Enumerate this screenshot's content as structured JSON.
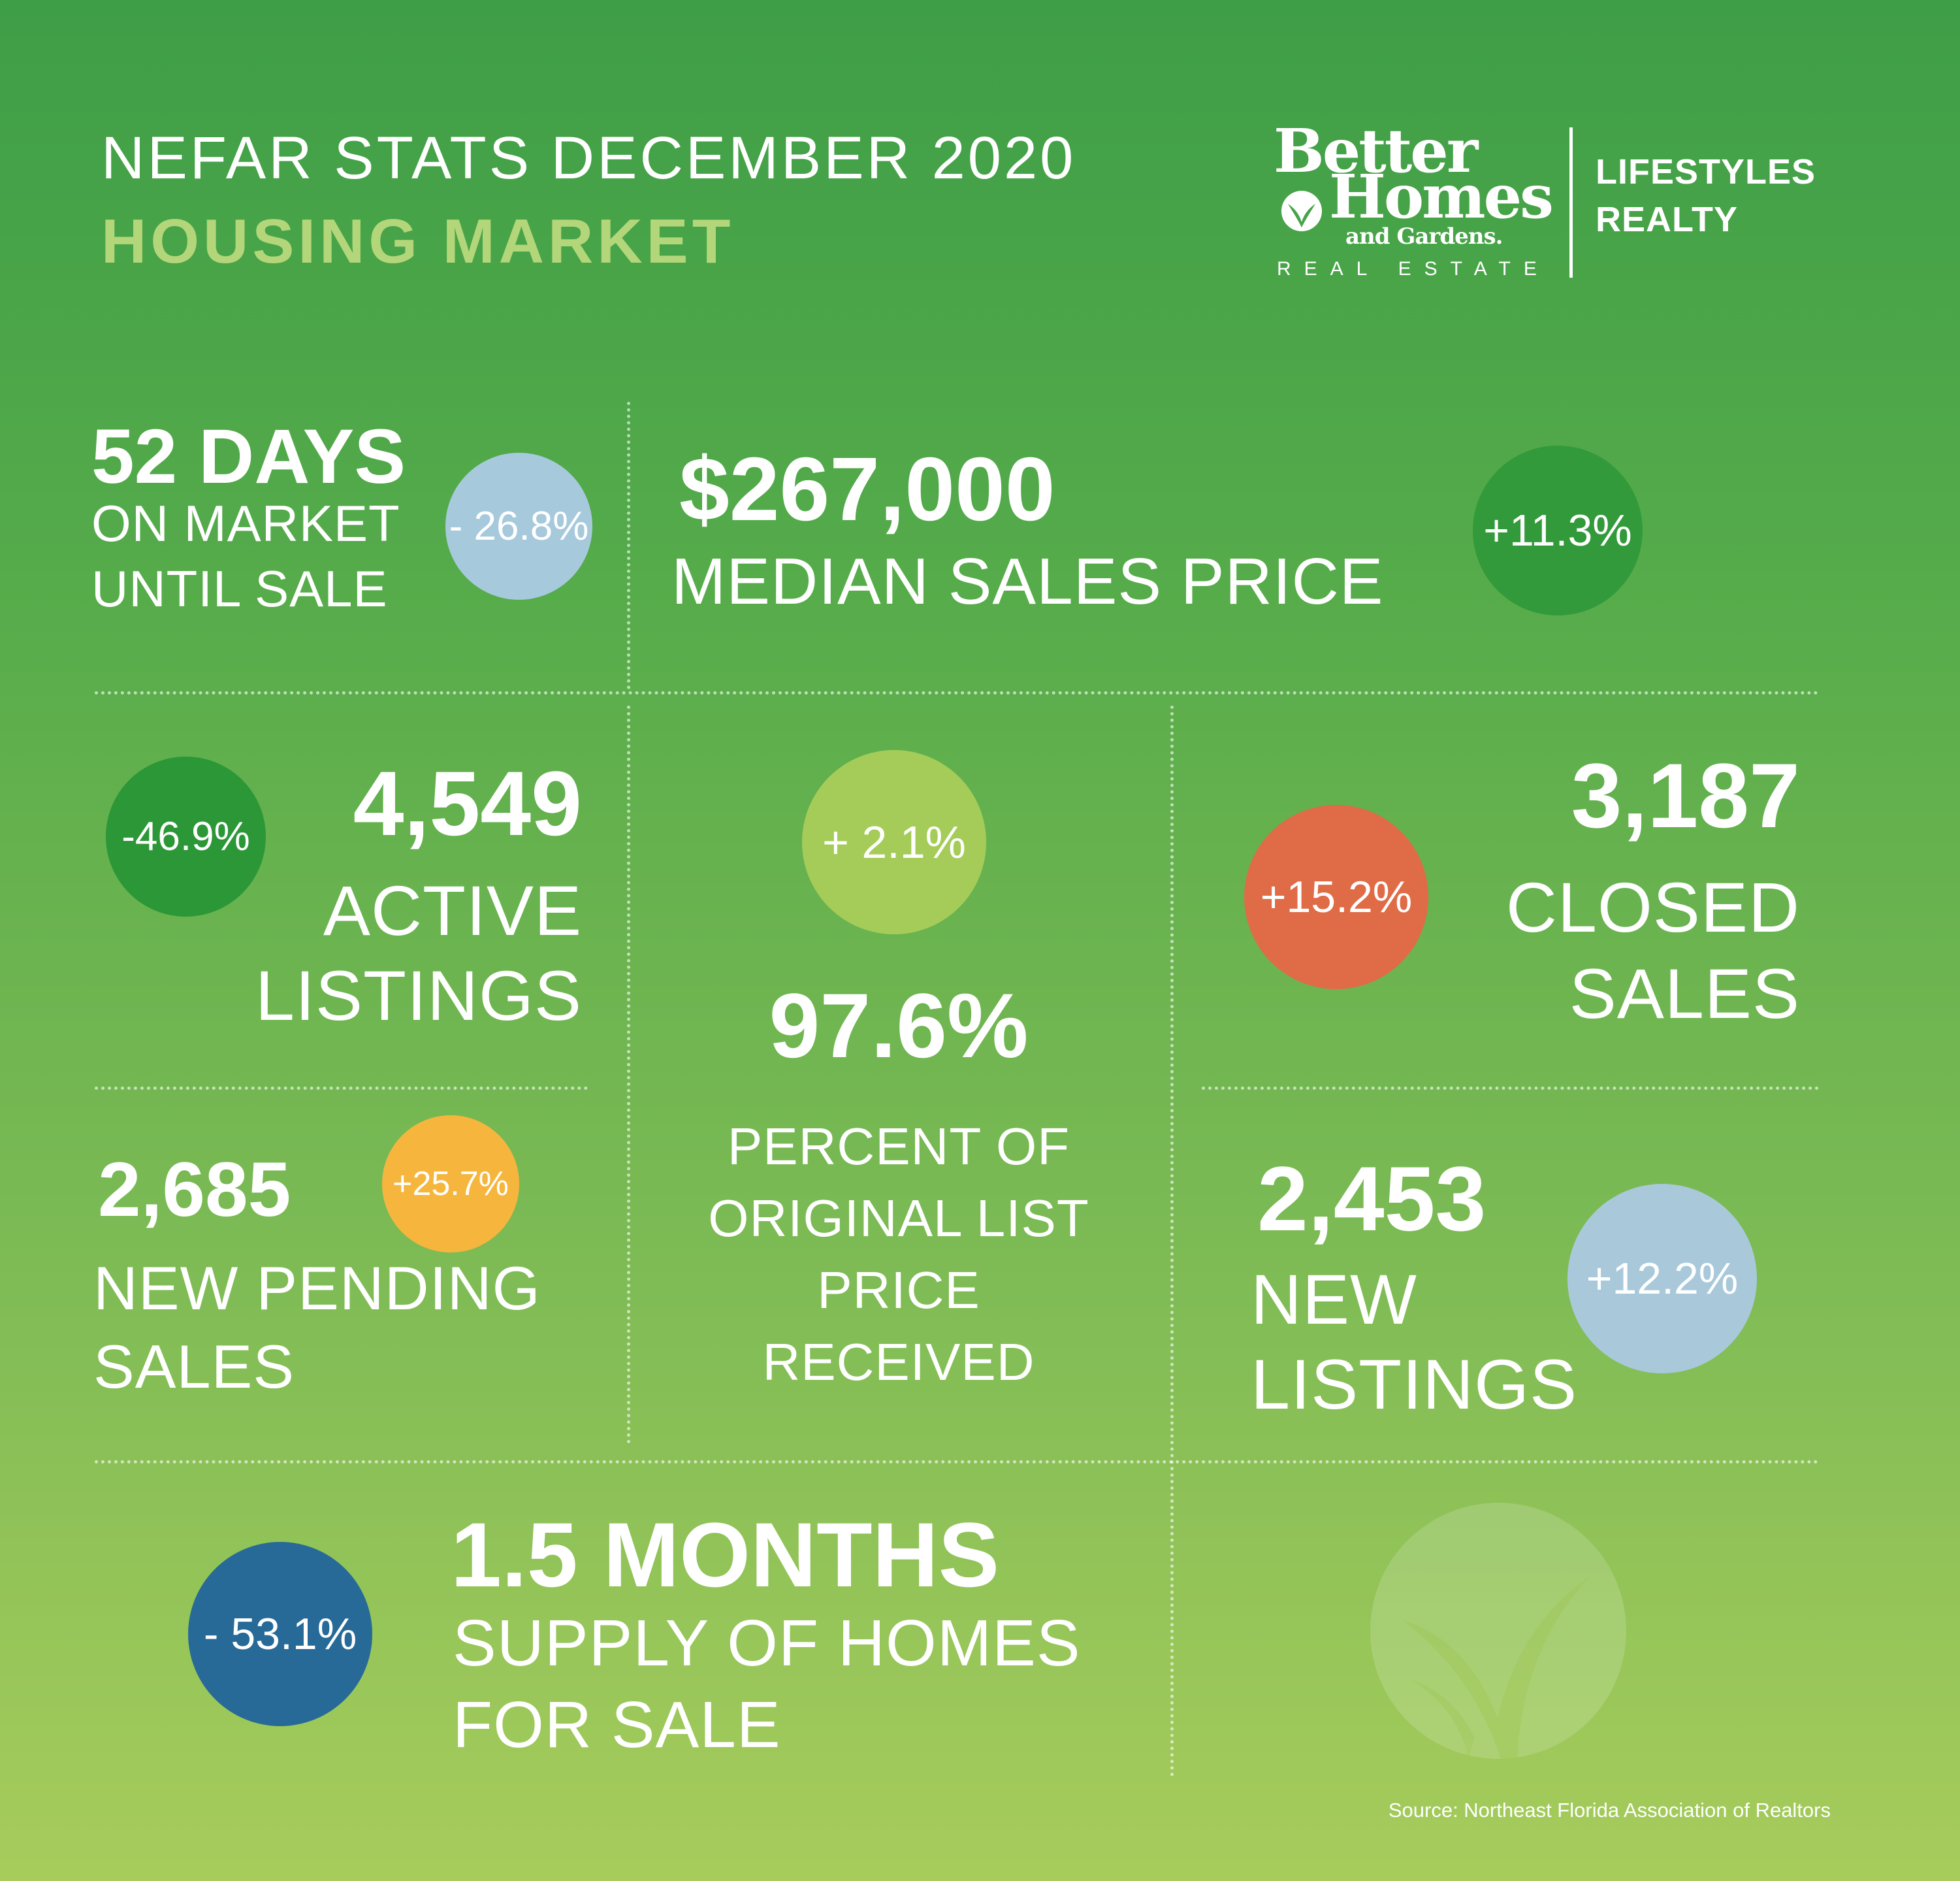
{
  "header": {
    "title": "NEFAR STATS  DECEMBER 2020",
    "subtitle": "HOUSING MARKET"
  },
  "brand": {
    "logo_line1": "Better",
    "logo_line2": "Homes",
    "logo_line3": "and Gardens.",
    "logo_sub": "REAL ESTATE",
    "name_line1": "LIFESTYLES",
    "name_line2": "REALTY"
  },
  "stats": {
    "days_on_market": {
      "value": "52 DAYS",
      "label_line1": "ON  MARKET",
      "label_line2": "UNTIL SALE",
      "change": "- 26.8%",
      "color": "#a7c9dc"
    },
    "median_price": {
      "value": "$267,000",
      "label": "MEDIAN SALES PRICE",
      "change": "+11.3%",
      "color": "#329a3a"
    },
    "active_listings": {
      "value": "4,549",
      "label_line1": "ACTIVE",
      "label_line2": "LISTINGS",
      "change": "-46.9%",
      "color": "#2c9737"
    },
    "pct_original_price": {
      "value": "97.6%",
      "label_line1": "PERCENT OF",
      "label_line2": "ORIGINAL LIST",
      "label_line3": "PRICE",
      "label_line4": "RECEIVED",
      "change": "+ 2.1%",
      "color": "#a5cc59"
    },
    "closed_sales": {
      "value": "3,187",
      "label_line1": "CLOSED",
      "label_line2": "SALES",
      "change": "+15.2%",
      "color": "#e06b47"
    },
    "new_pending": {
      "value": "2,685",
      "label_line1": "NEW PENDING",
      "label_line2": "SALES",
      "change": "+25.7%",
      "color": "#f6b63e"
    },
    "new_listings": {
      "value": "2,453",
      "label_line1": "NEW",
      "label_line2": "LISTINGS",
      "change": "+12.2%",
      "color": "#a9c9db"
    },
    "supply": {
      "value": "1.5 MONTHS",
      "label_line1": "SUPPLY OF HOMES",
      "label_line2": "FOR SALE",
      "change": "- 53.1%",
      "color": "#276a98"
    }
  },
  "footer": {
    "source": "Source: Northeast Florida Association of Realtors"
  }
}
